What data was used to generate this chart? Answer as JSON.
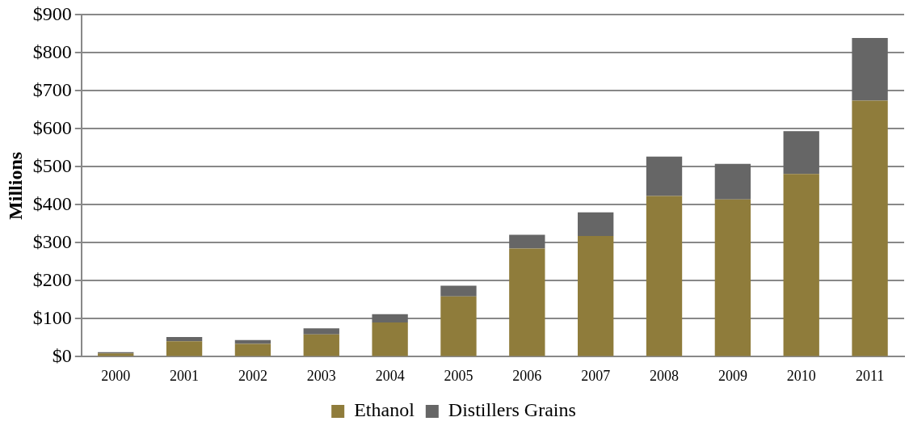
{
  "chart_data": {
    "type": "bar",
    "stacked": true,
    "ylabel": "Millions",
    "categories": [
      "2000",
      "2001",
      "2002",
      "2003",
      "2004",
      "2005",
      "2006",
      "2007",
      "2008",
      "2009",
      "2010",
      "2011"
    ],
    "series": [
      {
        "name": "Ethanol",
        "color": "#8f7c3b",
        "values": [
          9,
          41,
          34,
          59,
          90,
          159,
          285,
          318,
          423,
          414,
          481,
          674
        ]
      },
      {
        "name": "Distillers Grains",
        "color": "#666666",
        "values": [
          3,
          11,
          10,
          16,
          22,
          28,
          36,
          62,
          104,
          94,
          113,
          165
        ]
      }
    ],
    "ylim": [
      0,
      900
    ],
    "yticks": [
      {
        "value": 0,
        "label": "$0"
      },
      {
        "value": 100,
        "label": "$100"
      },
      {
        "value": 200,
        "label": "$200"
      },
      {
        "value": 300,
        "label": "$300"
      },
      {
        "value": 400,
        "label": "$400"
      },
      {
        "value": 500,
        "label": "$500"
      },
      {
        "value": 600,
        "label": "$600"
      },
      {
        "value": 700,
        "label": "$700"
      },
      {
        "value": 800,
        "label": "$800"
      },
      {
        "value": 900,
        "label": "$900"
      }
    ],
    "grid": "y",
    "legend": "bottom"
  }
}
